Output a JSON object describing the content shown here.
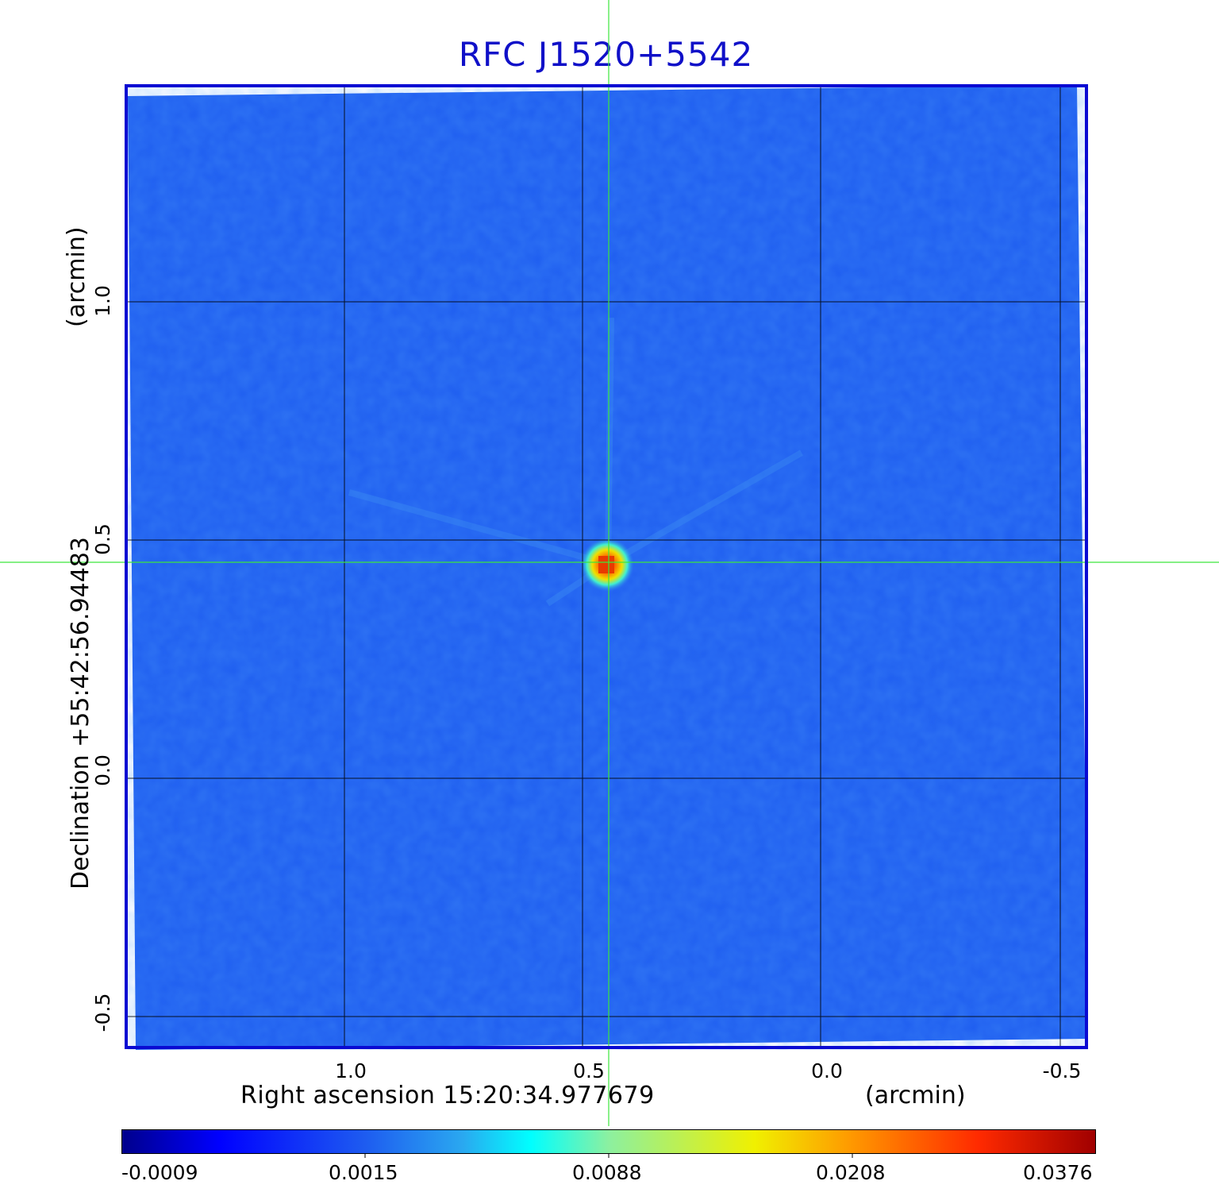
{
  "title": "RFC J1520+5542",
  "x_axis": {
    "label": "Right ascension  15:20:34.977679",
    "unit": "(arcmin)",
    "ticks": [
      "1.0",
      "0.5",
      "0.0",
      "-0.5"
    ]
  },
  "y_axis": {
    "label": "Declination  +55:42:56.94483",
    "unit": "(arcmin)",
    "ticks": [
      "1.0",
      "0.5",
      "0.0",
      "-0.5"
    ]
  },
  "colorbar": {
    "ticks": [
      "-0.0009",
      "0.0015",
      "0.0088",
      "0.0208",
      "0.0376"
    ]
  },
  "colors": {
    "title": "#1010c8",
    "frame": "#0a0ad2",
    "background_field": "#1f5ef0",
    "crosshair": "#3ce63c",
    "grid": "#000000"
  }
}
